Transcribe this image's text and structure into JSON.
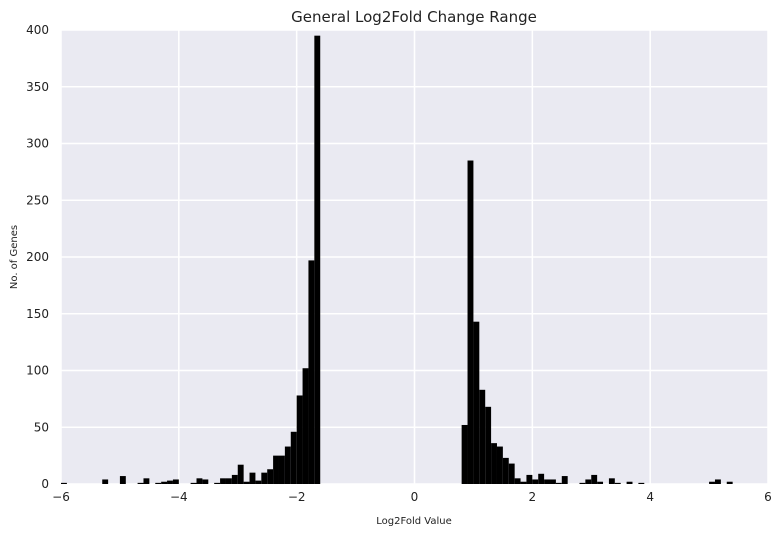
{
  "chart_data": {
    "type": "bar",
    "title": "General Log2Fold Change Range",
    "xlabel": "Log2Fold Value",
    "ylabel": "No. of Genes",
    "xlim": [
      -6,
      6
    ],
    "ylim": [
      0,
      400
    ],
    "grid": true,
    "bin_width": 0.1,
    "x_ticks": [
      -6,
      -4,
      -2,
      0,
      2,
      4,
      6
    ],
    "x_tick_labels": [
      "−6",
      "−4",
      "−2",
      "0",
      "2",
      "4",
      "6"
    ],
    "y_ticks": [
      0,
      50,
      100,
      150,
      200,
      250,
      300,
      350,
      400
    ],
    "y_tick_labels": [
      "0",
      "50",
      "100",
      "150",
      "200",
      "250",
      "300",
      "350",
      "400"
    ],
    "colors": {
      "bar": "#000000",
      "plot_background": "#EAEAF2",
      "grid": "#FFFFFF"
    },
    "bins": [
      {
        "x": -6.0,
        "count": 1
      },
      {
        "x": -5.3,
        "count": 4
      },
      {
        "x": -5.0,
        "count": 7
      },
      {
        "x": -4.7,
        "count": 1
      },
      {
        "x": -4.6,
        "count": 5
      },
      {
        "x": -4.4,
        "count": 1
      },
      {
        "x": -4.3,
        "count": 2
      },
      {
        "x": -4.2,
        "count": 3
      },
      {
        "x": -4.1,
        "count": 4
      },
      {
        "x": -3.8,
        "count": 1
      },
      {
        "x": -3.7,
        "count": 5
      },
      {
        "x": -3.6,
        "count": 4
      },
      {
        "x": -3.4,
        "count": 1
      },
      {
        "x": -3.3,
        "count": 5
      },
      {
        "x": -3.2,
        "count": 5
      },
      {
        "x": -3.1,
        "count": 8
      },
      {
        "x": -3.0,
        "count": 17
      },
      {
        "x": -2.9,
        "count": 2
      },
      {
        "x": -2.8,
        "count": 10
      },
      {
        "x": -2.7,
        "count": 3
      },
      {
        "x": -2.6,
        "count": 10
      },
      {
        "x": -2.5,
        "count": 13
      },
      {
        "x": -2.4,
        "count": 25
      },
      {
        "x": -2.3,
        "count": 25
      },
      {
        "x": -2.2,
        "count": 33
      },
      {
        "x": -2.1,
        "count": 46
      },
      {
        "x": -2.0,
        "count": 78
      },
      {
        "x": -1.9,
        "count": 102
      },
      {
        "x": -1.8,
        "count": 197
      },
      {
        "x": -1.7,
        "count": 395
      },
      {
        "x": 0.8,
        "count": 52
      },
      {
        "x": 0.9,
        "count": 285
      },
      {
        "x": 1.0,
        "count": 143
      },
      {
        "x": 1.1,
        "count": 83
      },
      {
        "x": 1.2,
        "count": 68
      },
      {
        "x": 1.3,
        "count": 36
      },
      {
        "x": 1.4,
        "count": 33
      },
      {
        "x": 1.5,
        "count": 23
      },
      {
        "x": 1.6,
        "count": 18
      },
      {
        "x": 1.7,
        "count": 5
      },
      {
        "x": 1.8,
        "count": 2
      },
      {
        "x": 1.9,
        "count": 8
      },
      {
        "x": 2.0,
        "count": 4
      },
      {
        "x": 2.1,
        "count": 9
      },
      {
        "x": 2.2,
        "count": 4
      },
      {
        "x": 2.3,
        "count": 4
      },
      {
        "x": 2.4,
        "count": 1
      },
      {
        "x": 2.5,
        "count": 7
      },
      {
        "x": 2.8,
        "count": 1
      },
      {
        "x": 2.9,
        "count": 4
      },
      {
        "x": 3.0,
        "count": 8
      },
      {
        "x": 3.1,
        "count": 2
      },
      {
        "x": 3.3,
        "count": 5
      },
      {
        "x": 3.4,
        "count": 1
      },
      {
        "x": 3.6,
        "count": 2
      },
      {
        "x": 3.8,
        "count": 1
      },
      {
        "x": 5.0,
        "count": 2
      },
      {
        "x": 5.1,
        "count": 4
      },
      {
        "x": 5.3,
        "count": 2
      }
    ]
  }
}
